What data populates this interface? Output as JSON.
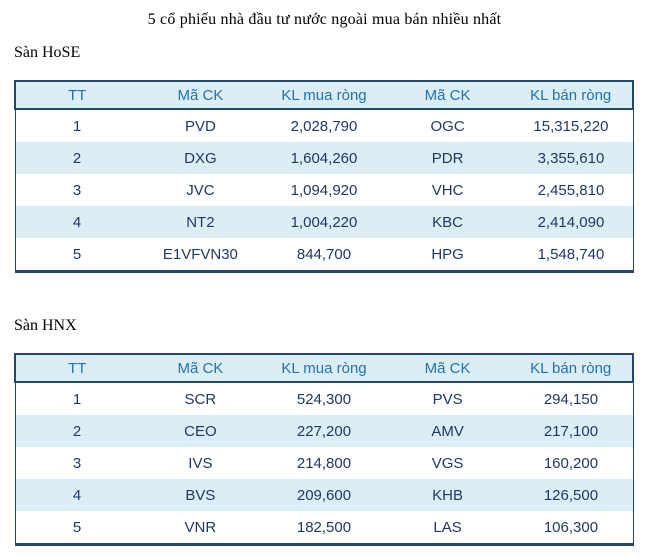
{
  "page": {
    "title": "5 cổ phiếu nhà đầu tư nước ngoài mua bán nhiều nhất"
  },
  "colors": {
    "border_navy": "#24486B",
    "header_bg": "#DBEEF5",
    "row_stripe_bg": "#DBEEF5",
    "header_text": "#2272AE",
    "cell_text": "#1F3864",
    "label_text": "#000000",
    "page_bg": "#FFFFFF"
  },
  "tables": [
    {
      "label": "Sàn HoSE",
      "headers": [
        "TT",
        "Mã CK",
        "KL mua ròng",
        "Mã CK",
        "KL bán ròng"
      ],
      "rows": [
        [
          "1",
          "PVD",
          "2,028,790",
          "OGC",
          "15,315,220"
        ],
        [
          "2",
          "DXG",
          "1,604,260",
          "PDR",
          "3,355,610"
        ],
        [
          "3",
          "JVC",
          "1,094,920",
          "VHC",
          "2,455,810"
        ],
        [
          "4",
          "NT2",
          "1,004,220",
          "KBC",
          "2,414,090"
        ],
        [
          "5",
          "E1VFVN30",
          "844,700",
          "HPG",
          "1,548,740"
        ]
      ]
    },
    {
      "label": "Sàn HNX",
      "headers": [
        "TT",
        "Mã CK",
        "KL mua ròng",
        "Mã CK",
        "KL bán ròng"
      ],
      "rows": [
        [
          "1",
          "SCR",
          "524,300",
          "PVS",
          "294,150"
        ],
        [
          "2",
          "CEO",
          "227,200",
          "AMV",
          "217,100"
        ],
        [
          "3",
          "IVS",
          "214,800",
          "VGS",
          "160,200"
        ],
        [
          "4",
          "BVS",
          "209,600",
          "KHB",
          "126,500"
        ],
        [
          "5",
          "VNR",
          "182,500",
          "LAS",
          "106,300"
        ]
      ]
    }
  ]
}
